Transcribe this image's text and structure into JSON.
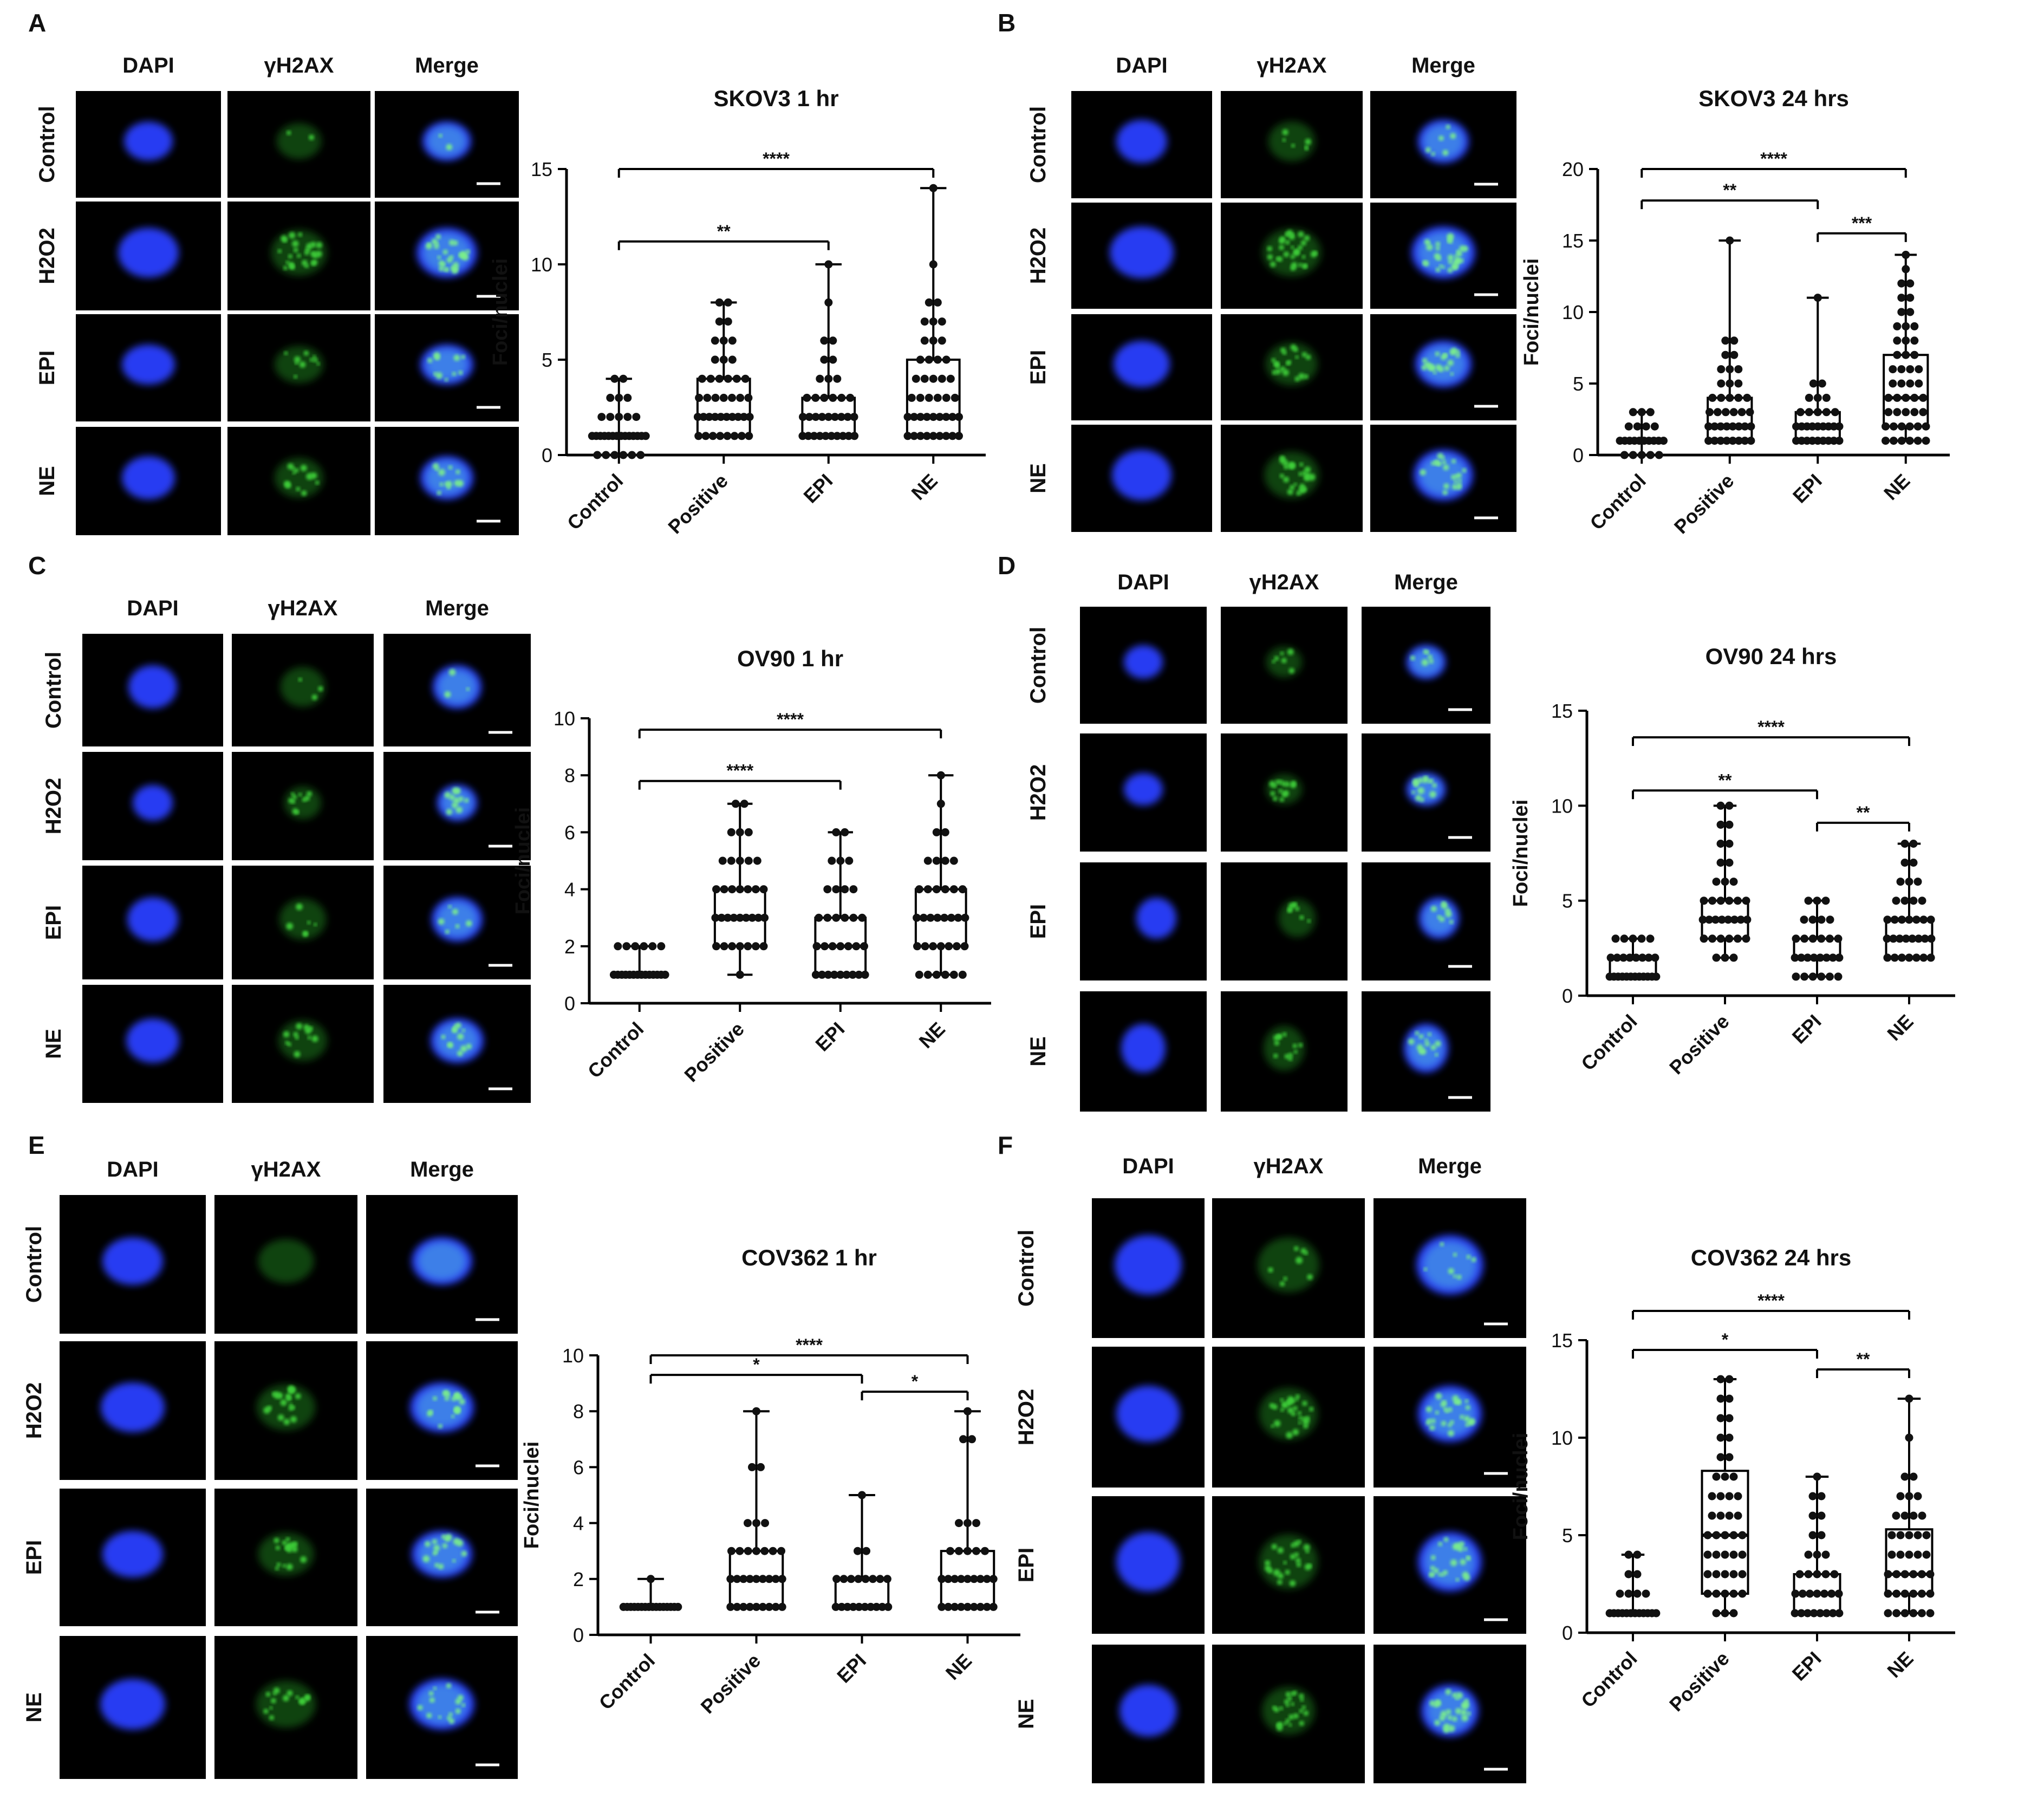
{
  "figure": {
    "channels": [
      "DAPI",
      "γH2AX",
      "Merge"
    ],
    "conditions": [
      "Control",
      "H2O2",
      "EPI",
      "NE"
    ],
    "categories": [
      "Control",
      "Positive",
      "EPI",
      "NE"
    ],
    "ylabel": "Foci/nuclei",
    "colors": {
      "nucleus_blue": "#2a40ff",
      "foci_green": "#3fd23a",
      "merge_cyan": "#50b7e0",
      "image_background": "#000000",
      "text": "#111111"
    }
  },
  "panels": [
    {
      "letter": "A",
      "title": "SKOV3 1 hr"
    },
    {
      "letter": "B",
      "title": "SKOV3 24 hrs"
    },
    {
      "letter": "C",
      "title": "OV90 1 hr"
    },
    {
      "letter": "D",
      "title": "OV90 24 hrs"
    },
    {
      "letter": "E",
      "title": "COV362 1 hr"
    },
    {
      "letter": "F",
      "title": "COV362 24 hrs"
    }
  ],
  "chart_data": [
    {
      "type": "box",
      "title": "SKOV3 1 hr",
      "ylabel": "Foci/nuclei",
      "categories": [
        "Control",
        "Positive",
        "EPI",
        "NE"
      ],
      "ylim": [
        0,
        15
      ],
      "yticks": [
        0,
        5,
        10,
        15
      ],
      "boxes": [
        {
          "category": "Control",
          "min": 0,
          "q1": 1,
          "median": 1,
          "q3": 1,
          "max": 4
        },
        {
          "category": "Positive",
          "min": 1,
          "q1": 1,
          "median": 2,
          "q3": 4,
          "max": 8
        },
        {
          "category": "EPI",
          "min": 1,
          "q1": 1,
          "median": 2,
          "q3": 3,
          "max": 10
        },
        {
          "category": "NE",
          "min": 1,
          "q1": 1,
          "median": 2,
          "q3": 5,
          "max": 14
        }
      ],
      "points": [
        {
          "category": "Control",
          "counts": {
            "0": 6,
            "1": 14,
            "2": 5,
            "3": 3,
            "4": 2
          }
        },
        {
          "category": "Positive",
          "counts": {
            "1": 8,
            "2": 10,
            "3": 7,
            "4": 6,
            "5": 3,
            "6": 3,
            "7": 2,
            "8": 2
          }
        },
        {
          "category": "EPI",
          "counts": {
            "1": 10,
            "2": 9,
            "3": 6,
            "4": 3,
            "5": 2,
            "6": 2,
            "8": 1,
            "10": 1
          }
        },
        {
          "category": "NE",
          "counts": {
            "1": 9,
            "2": 9,
            "3": 6,
            "4": 5,
            "5": 4,
            "6": 3,
            "7": 3,
            "8": 2,
            "10": 1,
            "14": 1
          }
        }
      ],
      "significance": [
        {
          "from": "Control",
          "to": "NE",
          "label": "****",
          "y": 15
        },
        {
          "from": "Control",
          "to": "EPI",
          "label": "**",
          "y": 11.2
        }
      ]
    },
    {
      "type": "box",
      "title": "SKOV3 24 hrs",
      "ylabel": "Foci/nuclei",
      "categories": [
        "Control",
        "Positive",
        "EPI",
        "NE"
      ],
      "ylim": [
        0,
        20
      ],
      "yticks": [
        0,
        5,
        10,
        15,
        20
      ],
      "boxes": [
        {
          "category": "Control",
          "min": 0,
          "q1": 1,
          "median": 1,
          "q3": 1,
          "max": 3
        },
        {
          "category": "Positive",
          "min": 1,
          "q1": 1,
          "median": 2,
          "q3": 4,
          "max": 15
        },
        {
          "category": "EPI",
          "min": 1,
          "q1": 1,
          "median": 2,
          "q3": 3,
          "max": 11
        },
        {
          "category": "NE",
          "min": 1,
          "q1": 2,
          "median": 4,
          "q3": 7,
          "max": 14
        }
      ],
      "points": [
        {
          "category": "Control",
          "counts": {
            "0": 5,
            "1": 10,
            "2": 4,
            "3": 3
          }
        },
        {
          "category": "Positive",
          "counts": {
            "1": 8,
            "2": 8,
            "3": 6,
            "4": 5,
            "5": 3,
            "6": 3,
            "7": 2,
            "8": 2,
            "15": 1
          }
        },
        {
          "category": "EPI",
          "counts": {
            "1": 9,
            "2": 9,
            "3": 5,
            "4": 3,
            "5": 2,
            "11": 1
          }
        },
        {
          "category": "NE",
          "counts": {
            "1": 6,
            "2": 6,
            "3": 5,
            "4": 5,
            "5": 4,
            "6": 4,
            "7": 3,
            "8": 3,
            "9": 3,
            "10": 2,
            "11": 2,
            "12": 2,
            "13": 1,
            "14": 1
          }
        }
      ],
      "significance": [
        {
          "from": "Control",
          "to": "NE",
          "label": "****",
          "y": 20
        },
        {
          "from": "Control",
          "to": "EPI",
          "label": "**",
          "y": 17.8
        },
        {
          "from": "EPI",
          "to": "NE",
          "label": "***",
          "y": 15.5
        }
      ]
    },
    {
      "type": "box",
      "title": "OV90 1 hr",
      "ylabel": "Foci/nuclei",
      "categories": [
        "Control",
        "Positive",
        "EPI",
        "NE"
      ],
      "ylim": [
        0,
        10
      ],
      "yticks": [
        0,
        2,
        4,
        6,
        8,
        10
      ],
      "boxes": [
        {
          "category": "Control",
          "min": 1,
          "q1": 1,
          "median": 1,
          "q3": 1,
          "max": 2
        },
        {
          "category": "Positive",
          "min": 1,
          "q1": 2,
          "median": 3,
          "q3": 4,
          "max": 7
        },
        {
          "category": "EPI",
          "min": 1,
          "q1": 1,
          "median": 2,
          "q3": 3,
          "max": 6
        },
        {
          "category": "NE",
          "min": 1,
          "q1": 2,
          "median": 3,
          "q3": 4,
          "max": 8
        }
      ],
      "points": [
        {
          "category": "Control",
          "counts": {
            "1": 14,
            "2": 6
          }
        },
        {
          "category": "Positive",
          "counts": {
            "1": 1,
            "2": 7,
            "3": 9,
            "4": 7,
            "5": 5,
            "6": 3,
            "7": 2
          }
        },
        {
          "category": "EPI",
          "counts": {
            "1": 9,
            "2": 7,
            "3": 6,
            "4": 4,
            "5": 3,
            "6": 2
          }
        },
        {
          "category": "NE",
          "counts": {
            "1": 6,
            "2": 7,
            "3": 8,
            "4": 6,
            "5": 4,
            "6": 2,
            "7": 1,
            "8": 1
          }
        }
      ],
      "significance": [
        {
          "from": "Control",
          "to": "NE",
          "label": "****",
          "y": 9.6
        },
        {
          "from": "Control",
          "to": "EPI",
          "label": "****",
          "y": 7.8
        }
      ]
    },
    {
      "type": "box",
      "title": "OV90 24 hrs",
      "ylabel": "Foci/nuclei",
      "categories": [
        "Control",
        "Positive",
        "EPI",
        "NE"
      ],
      "ylim": [
        0,
        15
      ],
      "yticks": [
        0,
        5,
        10,
        15
      ],
      "boxes": [
        {
          "category": "Control",
          "min": 1,
          "q1": 1,
          "median": 2,
          "q3": 2,
          "max": 3
        },
        {
          "category": "Positive",
          "min": 2,
          "q1": 3,
          "median": 4,
          "q3": 5,
          "max": 10
        },
        {
          "category": "EPI",
          "min": 1,
          "q1": 2,
          "median": 2,
          "q3": 3,
          "max": 5
        },
        {
          "category": "NE",
          "min": 2,
          "q1": 2,
          "median": 3,
          "q3": 4,
          "max": 8
        }
      ],
      "points": [
        {
          "category": "Control",
          "counts": {
            "1": 12,
            "2": 8,
            "3": 5
          }
        },
        {
          "category": "Positive",
          "counts": {
            "2": 3,
            "3": 6,
            "4": 8,
            "5": 6,
            "6": 3,
            "7": 2,
            "8": 2,
            "9": 2,
            "10": 2
          }
        },
        {
          "category": "EPI",
          "counts": {
            "1": 6,
            "2": 8,
            "3": 6,
            "4": 4,
            "5": 3
          }
        },
        {
          "category": "NE",
          "counts": {
            "2": 7,
            "3": 8,
            "4": 7,
            "5": 4,
            "6": 3,
            "7": 2,
            "8": 2
          }
        }
      ],
      "significance": [
        {
          "from": "Control",
          "to": "NE",
          "label": "****",
          "y": 13.6
        },
        {
          "from": "Control",
          "to": "EPI",
          "label": "**",
          "y": 10.8
        },
        {
          "from": "EPI",
          "to": "NE",
          "label": "**",
          "y": 9.1
        }
      ]
    },
    {
      "type": "box",
      "title": "COV362 1 hr",
      "ylabel": "Foci/nuclei",
      "categories": [
        "Control",
        "Positive",
        "EPI",
        "NE"
      ],
      "ylim": [
        0,
        10
      ],
      "yticks": [
        0,
        2,
        4,
        6,
        8,
        10
      ],
      "boxes": [
        {
          "category": "Control",
          "min": 1,
          "q1": 1,
          "median": 1,
          "q3": 1,
          "max": 2
        },
        {
          "category": "Positive",
          "min": 1,
          "q1": 1,
          "median": 2,
          "q3": 3,
          "max": 8
        },
        {
          "category": "EPI",
          "min": 1,
          "q1": 1,
          "median": 2,
          "q3": 2,
          "max": 5
        },
        {
          "category": "NE",
          "min": 1,
          "q1": 1,
          "median": 2,
          "q3": 3,
          "max": 8
        }
      ],
      "points": [
        {
          "category": "Control",
          "counts": {
            "1": 16,
            "2": 1
          }
        },
        {
          "category": "Positive",
          "counts": {
            "1": 9,
            "2": 9,
            "3": 7,
            "4": 3,
            "6": 2,
            "8": 1
          }
        },
        {
          "category": "EPI",
          "counts": {
            "1": 10,
            "2": 8,
            "3": 2,
            "5": 1
          }
        },
        {
          "category": "NE",
          "counts": {
            "1": 9,
            "2": 9,
            "3": 5,
            "4": 3,
            "7": 2,
            "8": 1
          }
        }
      ],
      "significance": [
        {
          "from": "Control",
          "to": "NE",
          "label": "****",
          "y": 10
        },
        {
          "from": "Control",
          "to": "EPI",
          "label": "*",
          "y": 9.3
        },
        {
          "from": "EPI",
          "to": "NE",
          "label": "*",
          "y": 8.7
        }
      ]
    },
    {
      "type": "box",
      "title": "COV362 24 hrs",
      "ylabel": "Foci/nuclei",
      "categories": [
        "Control",
        "Positive",
        "EPI",
        "NE"
      ],
      "ylim": [
        0,
        15
      ],
      "yticks": [
        0,
        5,
        10,
        15
      ],
      "boxes": [
        {
          "category": "Control",
          "min": 1,
          "q1": 1,
          "median": 1,
          "q3": 1,
          "max": 4
        },
        {
          "category": "Positive",
          "min": 1,
          "q1": 2,
          "median": 5,
          "q3": 8.3,
          "max": 13
        },
        {
          "category": "EPI",
          "min": 1,
          "q1": 1,
          "median": 2,
          "q3": 3,
          "max": 8
        },
        {
          "category": "NE",
          "min": 1,
          "q1": 2,
          "median": 3,
          "q3": 5.3,
          "max": 12
        }
      ],
      "points": [
        {
          "category": "Control",
          "counts": {
            "1": 12,
            "2": 4,
            "3": 2,
            "4": 2
          }
        },
        {
          "category": "Positive",
          "counts": {
            "1": 3,
            "2": 5,
            "3": 5,
            "4": 5,
            "5": 5,
            "6": 4,
            "7": 4,
            "8": 3,
            "9": 2,
            "10": 2,
            "11": 2,
            "12": 2,
            "13": 2
          }
        },
        {
          "category": "EPI",
          "counts": {
            "1": 8,
            "2": 7,
            "3": 5,
            "4": 3,
            "5": 2,
            "6": 2,
            "7": 2,
            "8": 1
          }
        },
        {
          "category": "NE",
          "counts": {
            "1": 6,
            "2": 6,
            "3": 6,
            "4": 5,
            "5": 5,
            "6": 4,
            "7": 3,
            "8": 2,
            "10": 1,
            "12": 1
          }
        }
      ],
      "significance": [
        {
          "from": "Control",
          "to": "NE",
          "label": "****",
          "y": 16.5
        },
        {
          "from": "Control",
          "to": "EPI",
          "label": "*",
          "y": 14.5
        },
        {
          "from": "EPI",
          "to": "NE",
          "label": "**",
          "y": 13.5
        }
      ]
    }
  ]
}
